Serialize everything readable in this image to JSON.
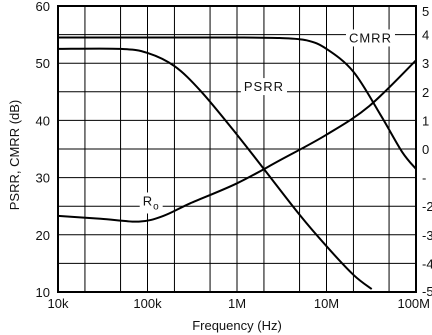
{
  "chart_data": {
    "type": "line",
    "title": "",
    "xlabel": "Frequency   (Hz)",
    "ylabel": "PSRR,  CMRR  (dB)",
    "x_scale": "log",
    "xlim": [
      10000,
      100000000
    ],
    "ylim": [
      10,
      60
    ],
    "grid": true,
    "x_ticks": [
      {
        "value": 10000,
        "label": "10k"
      },
      {
        "value": 100000,
        "label": "100k"
      },
      {
        "value": 1000000,
        "label": "1M"
      },
      {
        "value": 10000000,
        "label": "10M"
      },
      {
        "value": 100000000,
        "label": "100M"
      }
    ],
    "y_ticks": [
      {
        "value": 10,
        "label": "10"
      },
      {
        "value": 20,
        "label": "20"
      },
      {
        "value": 30,
        "label": "30"
      },
      {
        "value": 40,
        "label": "40"
      },
      {
        "value": 50,
        "label": "50"
      },
      {
        "value": 60,
        "label": "60"
      }
    ],
    "right_ticks_partial": [
      "5",
      "4",
      "3",
      "2",
      "1",
      "0",
      "-",
      "-2",
      "-3",
      "-4",
      "-5"
    ],
    "series": [
      {
        "name": "CMRR",
        "x": [
          10000,
          100000,
          1000000,
          3000000,
          6000000,
          10000000,
          20000000,
          40000000,
          70000000,
          100000000
        ],
        "y": [
          54.5,
          54.5,
          54.5,
          54.4,
          54.0,
          52.5,
          48.5,
          41.0,
          34.5,
          31.5
        ]
      },
      {
        "name": "PSRR",
        "x": [
          10000,
          50000,
          100000,
          200000,
          400000,
          1000000,
          2000000,
          5000000,
          10000000,
          20000000,
          32000000
        ],
        "y": [
          52.5,
          52.5,
          51.8,
          49.5,
          45.0,
          37.5,
          31.5,
          23.5,
          18.0,
          13.0,
          10.5
        ]
      },
      {
        "name": "Ro",
        "x": [
          10000,
          30000,
          80000,
          150000,
          300000,
          1000000,
          3000000,
          10000000,
          30000000,
          100000000
        ],
        "y": [
          23.3,
          22.8,
          22.3,
          23.3,
          25.5,
          29.0,
          33.0,
          37.5,
          42.5,
          50.5
        ]
      }
    ],
    "annotations": [
      {
        "text": "CMRR",
        "x": 31000000,
        "y": 54.5
      },
      {
        "text": "PSRR",
        "x": 2000000,
        "y": 46.0
      },
      {
        "text": "R",
        "sub": "o",
        "x": 110000,
        "y": 26.0
      }
    ]
  }
}
